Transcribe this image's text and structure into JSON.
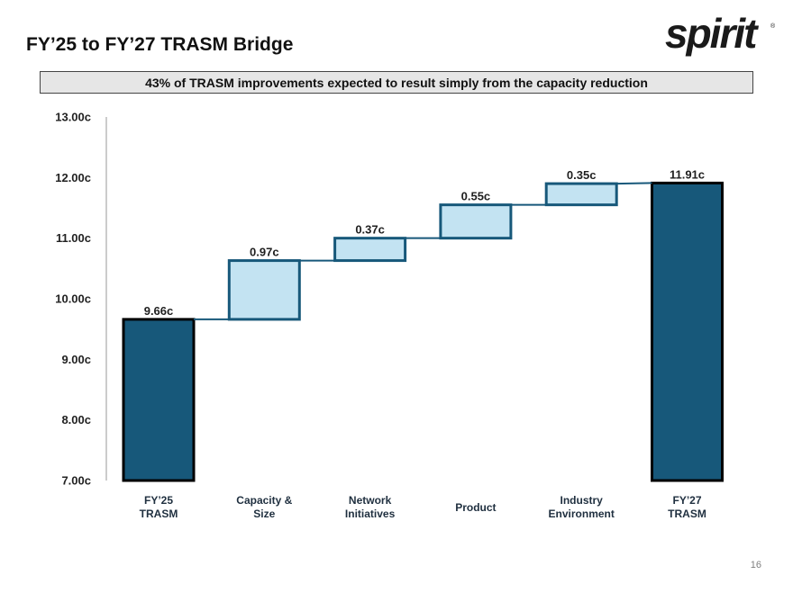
{
  "header": {
    "title": "FY’25 to FY’27 TRASM Bridge",
    "logo_text": "spirit",
    "logo_mark": "®"
  },
  "banner": {
    "text": "43% of TRASM improvements expected to result simply from the capacity reduction"
  },
  "footer": {
    "page_number": "16"
  },
  "colors": {
    "total_fill": "#17587a",
    "step_fill": "#c3e3f2",
    "step_stroke": "#17587a",
    "axis": "#cccccc"
  },
  "chart_data": {
    "type": "waterfall",
    "ylim": [
      7.0,
      13.0
    ],
    "yticks": [
      {
        "value": 13.0,
        "label": "13.00c"
      },
      {
        "value": 12.0,
        "label": "12.00c"
      },
      {
        "value": 11.0,
        "label": "11.00c"
      },
      {
        "value": 10.0,
        "label": "10.00c"
      },
      {
        "value": 9.0,
        "label": "9.00c"
      },
      {
        "value": 8.0,
        "label": "8.00c"
      },
      {
        "value": 7.0,
        "label": "7.00c"
      }
    ],
    "bars": [
      {
        "category": [
          "FY’25",
          "TRASM"
        ],
        "kind": "total",
        "value": 9.66,
        "label": "9.66c"
      },
      {
        "category": [
          "Capacity &",
          "Size"
        ],
        "kind": "delta",
        "value": 0.97,
        "label": "0.97c"
      },
      {
        "category": [
          "Network",
          "Initiatives"
        ],
        "kind": "delta",
        "value": 0.37,
        "label": "0.37c"
      },
      {
        "category": [
          "Product"
        ],
        "kind": "delta",
        "value": 0.55,
        "label": "0.55c"
      },
      {
        "category": [
          "Industry",
          "Environment"
        ],
        "kind": "delta",
        "value": 0.35,
        "label": "0.35c"
      },
      {
        "category": [
          "FY’27",
          "TRASM"
        ],
        "kind": "total",
        "value": 11.91,
        "label": "11.91c"
      }
    ]
  }
}
